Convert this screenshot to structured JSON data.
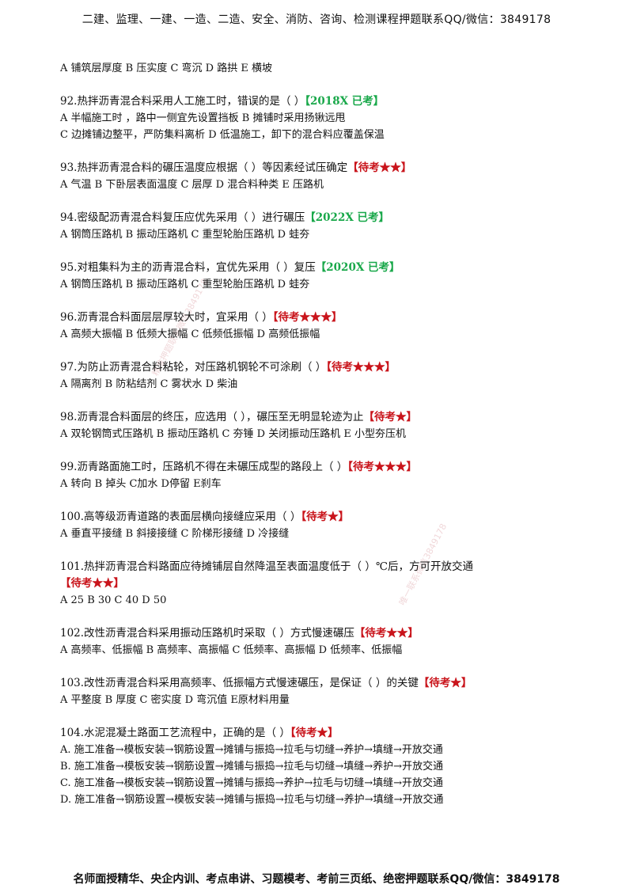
{
  "header": "二建、监理、一建、一造、二造、安全、消防、咨询、检测课程押题联系QQ/微信：3849178",
  "footer": "名师面授精华、央企内训、考点串讲、习题模考、考前三页纸、绝密押题联系QQ/微信：3849178",
  "watermarks": [
    "精准押题联系微信3849178",
    "唯一联系微信3849178"
  ],
  "colors": {
    "exam_tag": "#19a84a",
    "pending_tag": "#c9141b"
  },
  "intro_options": "A 铺筑层厚度    B 压实度    C 弯沉     D 路拱   E 横坡",
  "questions": [
    {
      "stem": "92.热拌沥青混合料采用人工施工时，错误的是（     ）",
      "tag": "【2018X 已考】",
      "options": [
        "A 半幅施工时 ，路中一侧宜先设置挡板    B 摊铺时采用扬锹远甩",
        "C 边摊铺边整平，严防集料离析               D 低温施工，卸下的混合料应覆盖保温"
      ]
    },
    {
      "stem": "93.热拌沥青混合料的碾压温度应根据（     ）等因素经试压确定",
      "tag": "【待考★★】",
      "options": [
        "A 气温    B 下卧层表面温度   C 层厚  D 混合料种类   E 压路机"
      ]
    },
    {
      "stem": "94.密级配沥青混合料复压应优先采用（     ）进行碾压",
      "tag": "【2022X 已考】",
      "options": [
        " A 钢筒压路机       B 振动压路机        C 重型轮胎压路机      D 蛙夯"
      ]
    },
    {
      "stem": "95.对粗集料为主的沥青混合料，宜优先采用（      ）复压",
      "tag": "【2020X 已考】",
      "options": [
        "A 钢筒压路机    B 振动压路机     C 重型轮胎压路机    D 蛙夯"
      ]
    },
    {
      "stem": "96.沥青混合料面层层厚较大时，宜采用（       ）",
      "tag": "【待考★★★】",
      "options": [
        " A 高频大振幅      B 低频大振幅   C 低频低振幅     D 高频低振幅"
      ]
    },
    {
      "stem": "97.为防止沥青混合料粘轮，对压路机钢轮不可涂刷（          ）",
      "tag": "【待考★★★】",
      "options": [
        "A 隔离剂     B 防粘结剂   C 雾状水     D 柴油"
      ]
    },
    {
      "stem": "98.沥青混合料面层的终压，应选用（    ），碾压至无明显轮迹为止",
      "tag": "【待考★】",
      "options": [
        "A 双轮钢筒式压路机   B 振动压路机    C 夯锤  D 关闭振动压路机  E 小型夯压机"
      ]
    },
    {
      "stem": "99.沥青路面施工时，压路机不得在未碾压成型的路段上（      ）",
      "tag": "【待考★★★】",
      "options": [
        "A 转向       B 掉头      C加水      D停留    E刹车"
      ]
    },
    {
      "stem": "100.高等级沥青道路的表面层横向接缝应采用（      ）",
      "tag": "【待考★】",
      "options": [
        "A 垂直平接缝    B 斜接接缝    C 阶梯形接缝    D 冷接缝"
      ]
    },
    {
      "stem": "101.热拌沥青混合料路面应待摊铺层自然降温至表面温度低于（      ）℃后，方可开放交通",
      "tag": "【待考★★】",
      "tag_on_next_line": true,
      "options": [
        "A 25     B 30    C 40    D 50"
      ]
    },
    {
      "stem": "102.改性沥青混合料采用振动压路机时采取（       ）方式慢速碾压",
      "tag": "【待考★★】",
      "options": [
        "A 高频率、低振幅    B 高频率、高振幅    C 低频率、高振幅   D 低频率、低振幅"
      ]
    },
    {
      "stem": "103.改性沥青混合料采用高频率、低振幅方式慢速碾压，是保证（      ）的关键",
      "tag": "【待考★】",
      "options": [
        "A 平整度         B 厚度          C 密实度          D 弯沉值          E原材料用量"
      ]
    },
    {
      "stem": "104.水泥混凝土路面工艺流程中，正确的是（       ）",
      "tag": "【待考★】",
      "options": [
        "A.  施工准备→模板安装→钢筋设置→摊铺与振捣→拉毛与切缝→养护→填缝→开放交通",
        "B.  施工准备→模板安装→钢筋设置→摊铺与振捣→拉毛与切缝→填缝→养护→开放交通",
        "C.  施工准备→模板安装→钢筋设置→摊铺与振捣→养护→拉毛与切缝→填缝→开放交通",
        "D.  施工准备→钢筋设置→模板安装→摊铺与振捣→拉毛与切缝→养护→填缝→开放交通"
      ]
    }
  ]
}
